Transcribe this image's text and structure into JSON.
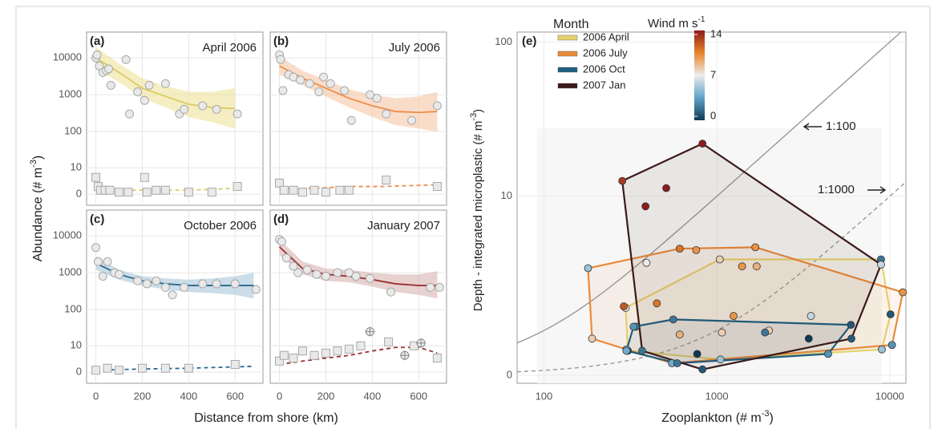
{
  "left_axes": {
    "x_label": "Distance from shore (km)",
    "y_label": {
      "text": "Abundance (# m",
      "sup": "-3",
      "end": ")"
    },
    "xlim": [
      -40,
      720
    ],
    "xticks": [
      0,
      200,
      400,
      600
    ],
    "ylim": [
      -3,
      50000
    ],
    "yticks": [
      0,
      10,
      100,
      1000,
      10000
    ],
    "yscale": "pseudo-log"
  },
  "chart_data": [
    {
      "type": "scatter",
      "panel_label": "(a)",
      "title": "April 2006",
      "series": [
        {
          "marker": "line",
          "color": "#dccb62",
          "band_color": "#efe39a",
          "x": [
            0,
            100,
            200,
            300,
            400,
            500,
            600
          ],
          "values": [
            10000,
            4000,
            1500,
            900,
            550,
            450,
            420
          ],
          "lower": [
            5000,
            2200,
            800,
            450,
            250,
            180,
            120
          ],
          "upper": [
            20000,
            7000,
            2800,
            1700,
            1200,
            1200,
            1500
          ]
        },
        {
          "marker": "line",
          "dash": true,
          "color": "#dccb62",
          "x": [
            0,
            200,
            400,
            600
          ],
          "values": [
            1,
            1,
            1,
            1.5
          ]
        },
        {
          "marker": "circle",
          "x": [
            0,
            5,
            15,
            30,
            45,
            55,
            65,
            130,
            145,
            180,
            210,
            230,
            300,
            360,
            380,
            460,
            520,
            610
          ],
          "values": [
            10000,
            12000,
            6000,
            4000,
            4500,
            5000,
            1800,
            9000,
            300,
            1200,
            700,
            1800,
            2000,
            300,
            400,
            500,
            400,
            300
          ]
        },
        {
          "marker": "square",
          "x": [
            0,
            10,
            20,
            40,
            60,
            100,
            140,
            210,
            220,
            260,
            300,
            400,
            500,
            610
          ],
          "values": [
            5,
            2,
            1,
            1,
            1,
            0.5,
            0.5,
            5,
            0.5,
            1,
            1,
            0.5,
            0.5,
            2
          ]
        }
      ]
    },
    {
      "type": "scatter",
      "panel_label": "(b)",
      "title": "July 2006",
      "series": [
        {
          "marker": "line",
          "color": "#ee8d4a",
          "band_color": "#f7c6a4",
          "x": [
            0,
            100,
            200,
            300,
            400,
            500,
            600,
            680
          ],
          "values": [
            6000,
            2800,
            1500,
            800,
            500,
            350,
            330,
            350
          ],
          "lower": [
            3500,
            1800,
            900,
            450,
            250,
            150,
            120,
            100
          ],
          "upper": [
            11000,
            4500,
            2500,
            1400,
            1000,
            800,
            900,
            1200
          ]
        },
        {
          "marker": "line",
          "dash": true,
          "color": "#ee8d4a",
          "x": [
            0,
            150,
            300,
            450,
            680
          ],
          "values": [
            1.5,
            1.5,
            2,
            2,
            2.5
          ]
        },
        {
          "marker": "circle",
          "x": [
            0,
            5,
            15,
            40,
            60,
            90,
            130,
            170,
            190,
            220,
            280,
            310,
            390,
            420,
            460,
            570,
            680
          ],
          "values": [
            12000,
            9000,
            1300,
            3500,
            3000,
            2500,
            2000,
            1200,
            3000,
            2000,
            1300,
            200,
            1000,
            800,
            300,
            200,
            500
          ]
        },
        {
          "marker": "square",
          "x": [
            0,
            20,
            60,
            100,
            150,
            200,
            260,
            300,
            460,
            680
          ],
          "values": [
            3,
            1,
            1,
            0.5,
            1,
            0.5,
            1,
            1,
            4,
            2
          ]
        }
      ]
    },
    {
      "type": "scatter",
      "panel_label": "(c)",
      "title": "October 2006",
      "series": [
        {
          "marker": "line",
          "color": "#2a6a90",
          "band_color": "#a9c6d9",
          "x": [
            0,
            100,
            200,
            300,
            400,
            500,
            600,
            680
          ],
          "values": [
            1800,
            900,
            600,
            500,
            450,
            450,
            450,
            450
          ],
          "lower": [
            1200,
            650,
            450,
            350,
            300,
            280,
            250,
            200
          ],
          "upper": [
            2800,
            1200,
            800,
            700,
            650,
            700,
            800,
            1000
          ]
        },
        {
          "marker": "line",
          "dash": true,
          "color": "#2a6a90",
          "x": [
            0,
            200,
            400,
            680
          ],
          "values": [
            0.5,
            0.8,
            1,
            1.5
          ]
        },
        {
          "marker": "circle",
          "x": [
            0,
            10,
            30,
            50,
            80,
            100,
            180,
            220,
            260,
            300,
            330,
            380,
            460,
            520,
            600,
            690
          ],
          "values": [
            4800,
            2000,
            800,
            2000,
            1000,
            900,
            600,
            500,
            600,
            400,
            250,
            400,
            500,
            500,
            500,
            350
          ]
        },
        {
          "marker": "square",
          "x": [
            0,
            50,
            100,
            200,
            300,
            400,
            600
          ],
          "values": [
            0.5,
            1,
            0.5,
            1,
            1,
            1,
            2
          ]
        }
      ]
    },
    {
      "type": "scatter",
      "panel_label": "(d)",
      "title": "January 2007",
      "series": [
        {
          "marker": "line",
          "color": "#993232",
          "band_color": "#d9b3b3",
          "x": [
            0,
            100,
            200,
            300,
            400,
            500,
            600,
            680
          ],
          "values": [
            5000,
            1300,
            900,
            800,
            650,
            500,
            450,
            450
          ],
          "lower": [
            3000,
            900,
            600,
            550,
            420,
            300,
            250,
            200
          ],
          "upper": [
            8000,
            2000,
            1300,
            1200,
            1000,
            900,
            900,
            1100
          ]
        },
        {
          "marker": "line",
          "dash": true,
          "color": "#993232",
          "x": [
            0,
            100,
            200,
            300,
            400,
            500,
            600,
            680
          ],
          "values": [
            2,
            3,
            4,
            5,
            7,
            9,
            9,
            6
          ]
        },
        {
          "marker": "circle",
          "x": [
            0,
            10,
            30,
            60,
            80,
            120,
            160,
            200,
            250,
            300,
            330,
            390,
            480,
            650,
            690
          ],
          "values": [
            8000,
            7000,
            2500,
            1500,
            1000,
            1200,
            900,
            800,
            1000,
            1000,
            800,
            700,
            300,
            400,
            400
          ]
        },
        {
          "marker": "square",
          "x": [
            0,
            20,
            60,
            100,
            150,
            200,
            250,
            300,
            350,
            470,
            580,
            680
          ],
          "values": [
            3,
            5,
            4,
            7,
            5,
            6,
            7,
            8,
            10,
            13,
            10,
            4
          ]
        },
        {
          "marker": "cross",
          "x": [
            390,
            540,
            610
          ],
          "values": [
            25,
            5,
            12
          ]
        }
      ]
    },
    {
      "type": "hull-scatter",
      "panel_label": "(e)",
      "x_label": {
        "text": "Zooplankton (# m",
        "sup": "-3",
        "end": ")"
      },
      "y_label": {
        "text": "Depth - integrated microplastic (# m",
        "sup": "-3",
        "end": ")"
      },
      "xscale": "log",
      "yscale": "pseudo-log",
      "xlim": [
        70,
        12400
      ],
      "ylim": [
        -0.17,
        116
      ],
      "xticks": [
        100,
        1000,
        10000
      ],
      "yticks": [
        0,
        10,
        100
      ],
      "legend_title": "Month",
      "ratio_lines": [
        {
          "label": "1:100",
          "ratio": 100,
          "dash": false
        },
        {
          "label": "1:1000",
          "ratio": 1000,
          "dash": true
        }
      ],
      "colorbar": {
        "title": "Wind m s",
        "sup": "-1",
        "lim": [
          0,
          14
        ],
        "ticks": [
          0,
          7,
          14
        ],
        "colors": [
          "#0d3a56",
          "#5fa3c8",
          "#ececec",
          "#e8852a",
          "#8e1b1b"
        ]
      },
      "series": [
        {
          "name": "2006 April",
          "color": "#e6d370",
          "x": [
            297,
            340,
            1040,
            1700,
            8900,
            10100,
            9000,
            1050,
            306,
            610,
            1250,
            3500,
            2000
          ],
          "values": [
            1.65,
            1.1,
            3.8,
            3.4,
            3.8,
            1.45,
            0.55,
            0.33,
            0.52,
            0.9,
            1.4,
            1.4,
            1.0
          ],
          "wind": [
            7,
            2,
            8,
            9,
            2,
            1,
            5,
            5,
            1,
            9,
            10,
            6,
            8
          ]
        },
        {
          "name": "2006 July",
          "color": "#ea8a3a",
          "x": [
            180,
            190,
            290,
            610,
            760,
            1670,
            11900,
            10300,
            550,
            300,
            1400,
            450
          ],
          "values": [
            3.3,
            0.8,
            1.7,
            4.5,
            4.4,
            4.6,
            2.2,
            0.65,
            0.25,
            0.55,
            3.4,
            1.8
          ],
          "wind": [
            5,
            8,
            12,
            11,
            10,
            10,
            10,
            3,
            4,
            5,
            10,
            11
          ]
        },
        {
          "name": "2006 Oct",
          "color": "#1f5f80",
          "x": [
            330,
            560,
            1070,
            5960,
            4400,
            590,
            300,
            770,
            1900,
            3400
          ],
          "values": [
            1.1,
            1.3,
            0.95,
            1.15,
            0.45,
            0.25,
            0.52,
            0.45,
            0.95,
            0.8
          ],
          "wind": [
            3,
            2,
            8,
            1,
            3,
            2,
            4,
            0,
            2,
            0
          ]
        },
        {
          "name": "2007 Jan",
          "color": "#3b1a1a",
          "x": [
            284,
            826,
            510,
            387,
            392,
            8900,
            6000,
            826,
            370
          ],
          "values": [
            12.6,
            22,
            11.3,
            8.6,
            3.6,
            3.5,
            0.8,
            0.12,
            0.52
          ],
          "wind": [
            13,
            14,
            14,
            14,
            7,
            6,
            1,
            1,
            2
          ]
        }
      ]
    }
  ]
}
